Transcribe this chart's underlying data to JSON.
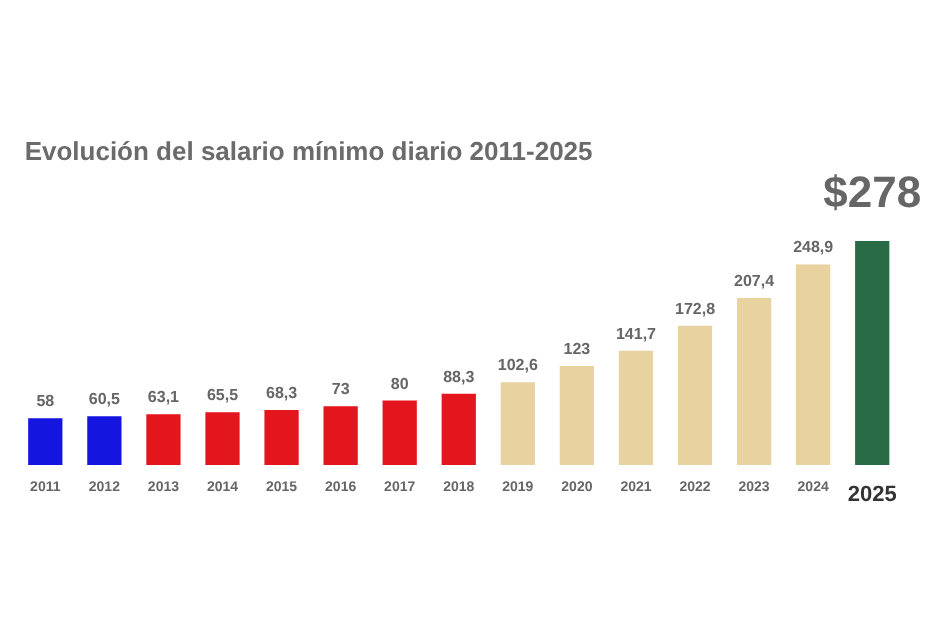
{
  "chart_data": {
    "type": "bar",
    "title": "Evolución del salario mínimo diario 2011-2025",
    "categories": [
      "2011",
      "2012",
      "2013",
      "2014",
      "2015",
      "2016",
      "2017",
      "2018",
      "2019",
      "2020",
      "2021",
      "2022",
      "2023",
      "2024",
      "2025"
    ],
    "values": [
      58,
      60.5,
      63.1,
      65.5,
      68.3,
      73,
      80,
      88.3,
      102.6,
      123,
      141.7,
      172.8,
      207.4,
      248.9,
      278
    ],
    "colors": [
      "#1515e0",
      "#1515e0",
      "#e3161d",
      "#e3161d",
      "#e3161d",
      "#e3161d",
      "#e3161d",
      "#e3161d",
      "#e8d29f",
      "#e8d29f",
      "#e8d29f",
      "#e8d29f",
      "#e8d29f",
      "#e8d29f",
      "#286b45"
    ],
    "value_labels": [
      "58",
      "60,5",
      "63,1",
      "65,5",
      "68,3",
      "73",
      "80",
      "88,3",
      "102,6",
      "123",
      "141,7",
      "172,8",
      "207,4",
      "248,9",
      "$278"
    ],
    "grid": false
  }
}
